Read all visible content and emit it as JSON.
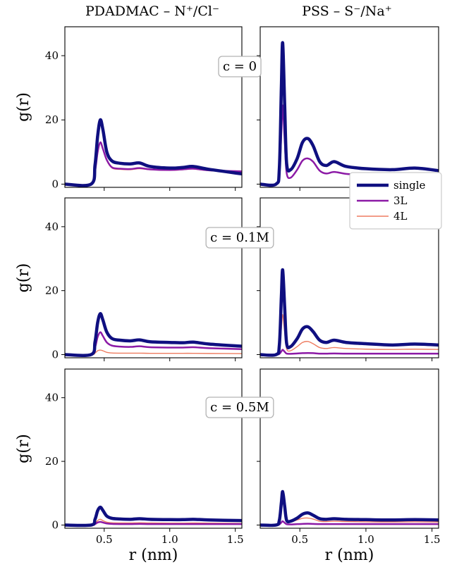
{
  "chart_data": {
    "type": "line",
    "layout": "3 rows x 2 columns",
    "column_titles": [
      "PDADMAC – N⁺/Cl⁻",
      "PSS – S⁻/Na⁺"
    ],
    "xlabel": "r (nm)",
    "ylabel": "g(r)",
    "xlim": [
      0.2,
      1.55
    ],
    "ylim": [
      -1,
      49
    ],
    "xticks": [
      0.5,
      1.0,
      1.5
    ],
    "xtick_labels": [
      "0.5",
      "1.0",
      "1.5"
    ],
    "yticks": [
      0,
      20,
      40
    ],
    "ytick_labels": [
      "0",
      "20",
      "40"
    ],
    "row_annotations": [
      "c = 0",
      "c = 0.1M",
      "c = 0.5M"
    ],
    "legend": {
      "placement": "right of top-right panel",
      "entries": [
        "single",
        "3L",
        "4L"
      ]
    },
    "series_styles": [
      {
        "name": "single",
        "color": "#0f0f80",
        "width": "thick"
      },
      {
        "name": "3L",
        "color": "#8c1aa6",
        "width": "medium"
      },
      {
        "name": "4L",
        "color": "#ee7c60",
        "width": "thin"
      }
    ],
    "panels": [
      {
        "row": 0,
        "col": 0,
        "series": [
          {
            "name": "single",
            "x": [
              0.2,
              0.4,
              0.43,
              0.45,
              0.47,
              0.49,
              0.52,
              0.56,
              0.62,
              0.7,
              0.77,
              0.85,
              1.0,
              1.1,
              1.18,
              1.3,
              1.55
            ],
            "y": [
              0,
              0,
              6,
              15,
              20,
              17,
              10,
              7.2,
              6.5,
              6.3,
              6.6,
              5.5,
              5,
              5.2,
              5.5,
              4.6,
              3.2
            ]
          },
          {
            "name": "3L",
            "x": [
              0.2,
              0.4,
              0.43,
              0.45,
              0.47,
              0.49,
              0.52,
              0.56,
              0.62,
              0.7,
              0.77,
              0.85,
              1.0,
              1.1,
              1.18,
              1.3,
              1.55
            ],
            "y": [
              0,
              0,
              4,
              10,
              13,
              11,
              7.5,
              5.2,
              4.8,
              4.7,
              5,
              4.6,
              4.4,
              4.6,
              4.8,
              4.3,
              4
            ]
          },
          {
            "name": "4L",
            "x": [
              0.2,
              0.4,
              0.43,
              0.45,
              0.47,
              0.49,
              0.52,
              0.56,
              0.62,
              0.7,
              0.77,
              0.85,
              1.0,
              1.1,
              1.18,
              1.3,
              1.55
            ],
            "y": [
              0,
              0,
              4,
              10,
              12.8,
              10.8,
              7.3,
              5,
              4.6,
              4.5,
              4.8,
              4.5,
              4.3,
              4.5,
              4.7,
              4.2,
              3.9
            ]
          }
        ]
      },
      {
        "row": 0,
        "col": 1,
        "series": [
          {
            "name": "single",
            "x": [
              0.2,
              0.32,
              0.345,
              0.36,
              0.37,
              0.385,
              0.4,
              0.43,
              0.48,
              0.52,
              0.56,
              0.6,
              0.65,
              0.7,
              0.76,
              0.85,
              1.0,
              1.2,
              1.37,
              1.55
            ],
            "y": [
              0,
              0,
              5,
              30,
              44,
              25,
              6.5,
              4.5,
              8,
              13,
              14.2,
              12,
              7,
              5.8,
              7,
              5.5,
              4.8,
              4.5,
              5,
              4.2
            ]
          },
          {
            "name": "3L",
            "x": [
              0.2,
              0.32,
              0.345,
              0.36,
              0.37,
              0.385,
              0.4,
              0.43,
              0.48,
              0.52,
              0.56,
              0.6,
              0.65,
              0.7,
              0.76,
              0.85,
              1.0,
              1.2,
              1.37,
              1.55
            ],
            "y": [
              0,
              0,
              3,
              16,
              24.5,
              14,
              3.5,
              2,
              4.5,
              7.3,
              8,
              7,
              4.2,
              3.3,
              3.8,
              3.2,
              2.8,
              2.8,
              3.2,
              3
            ]
          },
          {
            "name": "4L",
            "x": [
              0.2,
              0.32,
              0.345,
              0.36,
              0.37,
              0.385,
              0.4,
              0.43,
              0.48,
              0.52,
              0.56,
              0.6,
              0.65,
              0.7,
              0.76,
              0.85,
              1.0,
              1.2,
              1.37,
              1.55
            ],
            "y": [
              0,
              0,
              3,
              16,
              24.5,
              14,
              3.5,
              2,
              4.5,
              7.3,
              8,
              7,
              4.2,
              3.3,
              3.8,
              3.2,
              2.8,
              2.8,
              3.2,
              3
            ]
          }
        ]
      },
      {
        "row": 1,
        "col": 0,
        "series": [
          {
            "name": "single",
            "x": [
              0.2,
              0.4,
              0.43,
              0.45,
              0.47,
              0.49,
              0.52,
              0.56,
              0.62,
              0.7,
              0.77,
              0.85,
              1.0,
              1.1,
              1.18,
              1.3,
              1.55
            ],
            "y": [
              0,
              0,
              4,
              10,
              12.8,
              10.8,
              7,
              5,
              4.5,
              4.3,
              4.6,
              4,
              3.8,
              3.7,
              3.9,
              3.3,
              2.6
            ]
          },
          {
            "name": "3L",
            "x": [
              0.2,
              0.4,
              0.43,
              0.45,
              0.47,
              0.49,
              0.52,
              0.56,
              0.62,
              0.7,
              0.77,
              0.85,
              1.0,
              1.1,
              1.18,
              1.3,
              1.55
            ],
            "y": [
              0,
              0,
              2.2,
              5.5,
              7,
              5.8,
              3.8,
              2.8,
              2.5,
              2.4,
              2.6,
              2.3,
              2.2,
              2.2,
              2.3,
              2,
              1.7
            ]
          },
          {
            "name": "4L",
            "x": [
              0.2,
              0.4,
              0.43,
              0.45,
              0.47,
              0.49,
              0.52,
              0.56,
              0.62,
              0.7,
              0.77,
              0.85,
              1.0,
              1.1,
              1.18,
              1.3,
              1.55
            ],
            "y": [
              0,
              0,
              0.5,
              1.2,
              1.4,
              1.2,
              0.7,
              0.5,
              0.45,
              0.45,
              0.45,
              0.4,
              0.4,
              0.4,
              0.4,
              0.35,
              0.3
            ]
          }
        ]
      },
      {
        "row": 1,
        "col": 1,
        "series": [
          {
            "name": "single",
            "x": [
              0.2,
              0.32,
              0.345,
              0.36,
              0.37,
              0.385,
              0.4,
              0.43,
              0.48,
              0.52,
              0.56,
              0.6,
              0.65,
              0.7,
              0.76,
              0.85,
              1.0,
              1.2,
              1.37,
              1.55
            ],
            "y": [
              0,
              0,
              3,
              18,
              26.5,
              15,
              3.5,
              2.5,
              5,
              8,
              8.7,
              7.2,
              4.5,
              3.8,
              4.5,
              3.8,
              3.4,
              3,
              3.3,
              3
            ]
          },
          {
            "name": "3L",
            "x": [
              0.2,
              0.32,
              0.345,
              0.36,
              0.37,
              0.385,
              0.4,
              0.43,
              0.48,
              0.52,
              0.56,
              0.6,
              0.65,
              0.7,
              0.76,
              0.85,
              1.0,
              1.2,
              1.37,
              1.55
            ],
            "y": [
              0,
              0,
              0.2,
              1,
              1.5,
              0.9,
              0.3,
              0.25,
              0.35,
              0.45,
              0.5,
              0.45,
              0.3,
              0.3,
              0.35,
              0.3,
              0.3,
              0.3,
              0.3,
              0.3
            ]
          },
          {
            "name": "4L",
            "x": [
              0.2,
              0.32,
              0.345,
              0.36,
              0.37,
              0.385,
              0.4,
              0.43,
              0.48,
              0.52,
              0.56,
              0.6,
              0.65,
              0.7,
              0.76,
              0.85,
              1.0,
              1.2,
              1.37,
              1.55
            ],
            "y": [
              0,
              0,
              1.5,
              8,
              12.5,
              7,
              1.8,
              1.2,
              2.5,
              3.8,
              4.1,
              3.4,
              2.2,
              1.9,
              2.2,
              1.9,
              1.7,
              1.6,
              1.7,
              1.6
            ]
          }
        ]
      },
      {
        "row": 2,
        "col": 0,
        "series": [
          {
            "name": "single",
            "x": [
              0.2,
              0.4,
              0.43,
              0.45,
              0.47,
              0.49,
              0.52,
              0.56,
              0.62,
              0.7,
              0.77,
              0.85,
              1.0,
              1.1,
              1.18,
              1.3,
              1.55
            ],
            "y": [
              0,
              0,
              1.8,
              4.5,
              5.6,
              4.6,
              2.8,
              2.1,
              1.9,
              1.8,
              2,
              1.8,
              1.7,
              1.7,
              1.8,
              1.6,
              1.4
            ]
          },
          {
            "name": "3L",
            "x": [
              0.2,
              0.4,
              0.43,
              0.45,
              0.47,
              0.49,
              0.52,
              0.56,
              0.62,
              0.7,
              0.77,
              0.85,
              1.0,
              1.1,
              1.18,
              1.3,
              1.55
            ],
            "y": [
              0,
              0,
              0.3,
              0.8,
              1,
              0.8,
              0.5,
              0.35,
              0.3,
              0.3,
              0.35,
              0.3,
              0.3,
              0.3,
              0.3,
              0.3,
              0.3
            ]
          },
          {
            "name": "4L",
            "x": [
              0.2,
              0.4,
              0.43,
              0.45,
              0.47,
              0.49,
              0.52,
              0.56,
              0.62,
              0.7,
              0.77,
              0.85,
              1.0,
              1.1,
              1.18,
              1.3,
              1.55
            ],
            "y": [
              0,
              0,
              0.5,
              1.4,
              1.8,
              1.4,
              0.9,
              0.7,
              0.65,
              0.65,
              0.7,
              0.65,
              0.6,
              0.6,
              0.65,
              0.6,
              0.5
            ]
          }
        ]
      },
      {
        "row": 2,
        "col": 1,
        "series": [
          {
            "name": "single",
            "x": [
              0.2,
              0.32,
              0.345,
              0.36,
              0.37,
              0.385,
              0.4,
              0.43,
              0.48,
              0.52,
              0.56,
              0.6,
              0.65,
              0.7,
              0.76,
              0.85,
              1.0,
              1.2,
              1.37,
              1.55
            ],
            "y": [
              0,
              0,
              1.5,
              7,
              10.5,
              6,
              1.5,
              1.2,
              2.2,
              3.4,
              3.8,
              3.1,
              2,
              1.8,
              2,
              1.8,
              1.7,
              1.6,
              1.7,
              1.6
            ]
          },
          {
            "name": "3L",
            "x": [
              0.2,
              0.32,
              0.345,
              0.36,
              0.37,
              0.385,
              0.4,
              0.43,
              0.48,
              0.52,
              0.56,
              0.6,
              0.65,
              0.7,
              0.76,
              0.85,
              1.0,
              1.2,
              1.37,
              1.55
            ],
            "y": [
              0,
              0,
              0.2,
              0.8,
              1.2,
              0.7,
              0.25,
              0.2,
              0.3,
              0.35,
              0.4,
              0.35,
              0.3,
              0.3,
              0.3,
              0.3,
              0.3,
              0.3,
              0.3,
              0.3
            ]
          },
          {
            "name": "4L",
            "x": [
              0.2,
              0.32,
              0.345,
              0.36,
              0.37,
              0.385,
              0.4,
              0.43,
              0.48,
              0.52,
              0.56,
              0.6,
              0.65,
              0.7,
              0.76,
              0.85,
              1.0,
              1.2,
              1.37,
              1.55
            ],
            "y": [
              0,
              0,
              1.5,
              7,
              10.3,
              5.8,
              1.4,
              1,
              1.6,
              2.1,
              2.2,
              1.9,
              1.2,
              1.1,
              1.2,
              1.1,
              1,
              0.95,
              1,
              0.95
            ]
          }
        ]
      }
    ]
  }
}
